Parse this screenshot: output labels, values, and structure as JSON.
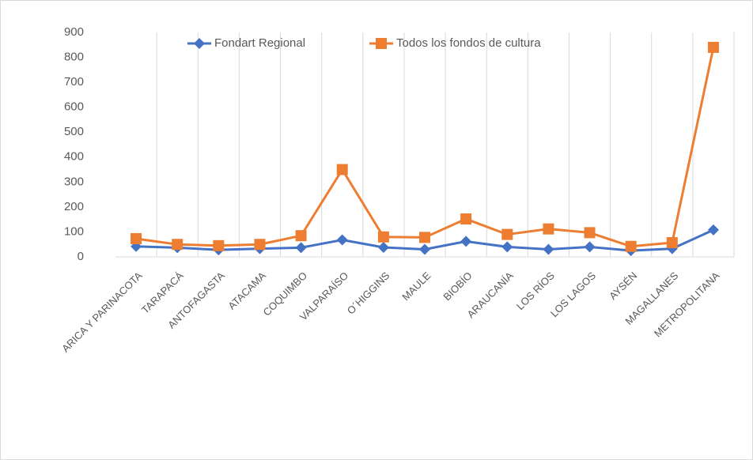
{
  "chart_data": {
    "type": "line",
    "categories": [
      "ARICA Y PARINACOTA",
      "TARAPACÁ",
      "ANTOFAGASTA",
      "ATACAMA",
      "COQUIMBO",
      "VALPARAÍSO",
      "O´HIGGINS",
      "MAULE",
      "BIOBÍO",
      "ARAUCANÍA",
      "LOS RÍOS",
      "LOS LAGOS",
      "AYSÉN",
      "MAGALLANES",
      "METROPOLITANA"
    ],
    "series": [
      {
        "name": "Fondart Regional",
        "color": "#4472c4",
        "marker": "diamond",
        "values": [
          42,
          37,
          28,
          33,
          37,
          68,
          38,
          30,
          62,
          40,
          30,
          40,
          25,
          33,
          108
        ]
      },
      {
        "name": "Todos los fondos de cultura",
        "color": "#ed7d31",
        "marker": "square",
        "values": [
          73,
          50,
          45,
          50,
          85,
          350,
          80,
          78,
          152,
          90,
          112,
          97,
          42,
          57,
          840
        ]
      }
    ],
    "ylim": [
      0,
      900
    ],
    "yticks": [
      0,
      100,
      200,
      300,
      400,
      500,
      600,
      700,
      800,
      900
    ],
    "grid": true,
    "legend": "top"
  }
}
